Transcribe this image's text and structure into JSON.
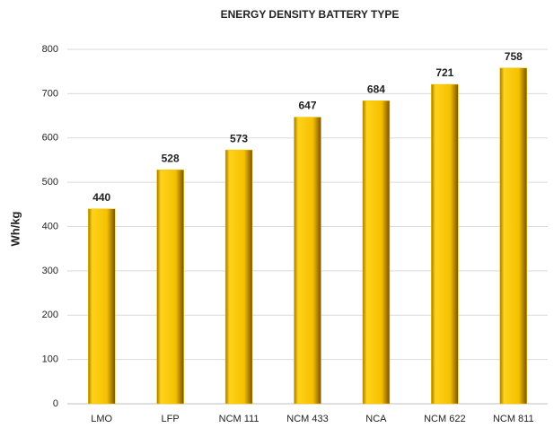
{
  "chart_data": {
    "type": "bar",
    "title": "ENERGY DENSITY BATTERY TYPE",
    "y_label": "Wh/kg",
    "categories": [
      "LMO",
      "LFP",
      "NCM 111",
      "NCM 433",
      "NCA",
      "NCM 622",
      "NCM 811"
    ],
    "values": [
      440,
      528,
      573,
      647,
      684,
      721,
      758
    ],
    "color": "#f5c400",
    "ylim": [
      0,
      800
    ],
    "yticks": [
      0,
      100,
      200,
      300,
      400,
      500,
      600,
      700,
      800
    ],
    "grid": true
  }
}
